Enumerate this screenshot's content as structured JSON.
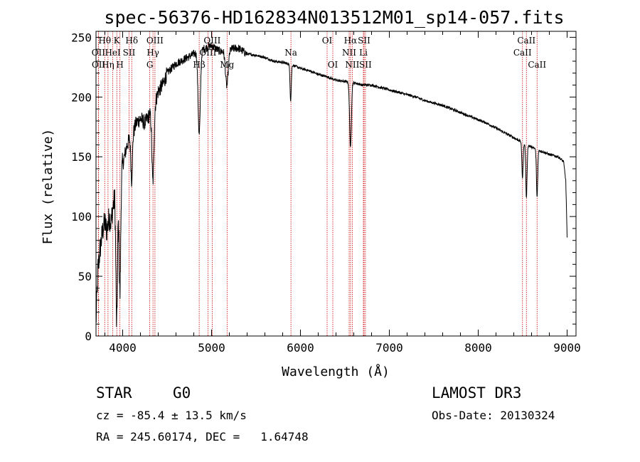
{
  "chart_data": {
    "type": "line",
    "title": "spec-56376-HD162834N013512M01_sp14-057.fits",
    "xlabel": "Wavelength (Å)",
    "ylabel": "Flux (relative)",
    "xlim": [
      3700,
      9100
    ],
    "ylim": [
      0,
      255
    ],
    "xticks": [
      4000,
      5000,
      6000,
      7000,
      8000,
      9000
    ],
    "yticks": [
      0,
      50,
      100,
      150,
      200,
      250
    ],
    "line_color": "#000000",
    "marker_color": "#cc0000",
    "continuum": [
      [
        3700,
        10
      ],
      [
        3720,
        55
      ],
      [
        3750,
        75
      ],
      [
        3780,
        90
      ],
      [
        3800,
        95
      ],
      [
        3820,
        88
      ],
      [
        3850,
        100
      ],
      [
        3870,
        95
      ],
      [
        3890,
        108
      ],
      [
        3910,
        115
      ],
      [
        3930,
        75
      ],
      [
        3950,
        110
      ],
      [
        3970,
        95
      ],
      [
        3990,
        140
      ],
      [
        4020,
        150
      ],
      [
        4050,
        160
      ],
      [
        4080,
        165
      ],
      [
        4100,
        160
      ],
      [
        4120,
        170
      ],
      [
        4150,
        178
      ],
      [
        4200,
        182
      ],
      [
        4250,
        178
      ],
      [
        4300,
        185
      ],
      [
        4350,
        190
      ],
      [
        4400,
        205
      ],
      [
        4450,
        210
      ],
      [
        4500,
        220
      ],
      [
        4600,
        228
      ],
      [
        4700,
        232
      ],
      [
        4800,
        236
      ],
      [
        4900,
        240
      ],
      [
        5000,
        243
      ],
      [
        5100,
        238
      ],
      [
        5200,
        240
      ],
      [
        5300,
        241
      ],
      [
        5400,
        236
      ],
      [
        5500,
        235
      ],
      [
        5600,
        233
      ],
      [
        5700,
        230
      ],
      [
        5800,
        229
      ],
      [
        5900,
        227
      ],
      [
        6000,
        224
      ],
      [
        6100,
        222
      ],
      [
        6200,
        219
      ],
      [
        6300,
        217
      ],
      [
        6400,
        214
      ],
      [
        6500,
        213
      ],
      [
        6600,
        212
      ],
      [
        6700,
        210
      ],
      [
        6800,
        210
      ],
      [
        6900,
        208
      ],
      [
        7000,
        206
      ],
      [
        7100,
        204
      ],
      [
        7200,
        202
      ],
      [
        7300,
        200
      ],
      [
        7400,
        197
      ],
      [
        7500,
        195
      ],
      [
        7600,
        193
      ],
      [
        7700,
        190
      ],
      [
        7800,
        187
      ],
      [
        7900,
        184
      ],
      [
        8000,
        181
      ],
      [
        8100,
        178
      ],
      [
        8200,
        174
      ],
      [
        8300,
        170
      ],
      [
        8400,
        166
      ],
      [
        8500,
        162
      ],
      [
        8600,
        158
      ],
      [
        8700,
        155
      ],
      [
        8800,
        152
      ],
      [
        8900,
        150
      ],
      [
        8960,
        146
      ],
      [
        8985,
        130
      ],
      [
        9000,
        82
      ]
    ],
    "absorption_lines": [
      [
        3934,
        70,
        12
      ],
      [
        3969,
        60,
        12
      ],
      [
        4101,
        30,
        12
      ],
      [
        4340,
        60,
        16
      ],
      [
        4861,
        70,
        18
      ],
      [
        5172,
        30,
        22
      ],
      [
        5890,
        30,
        10
      ],
      [
        6563,
        55,
        14
      ],
      [
        8498,
        30,
        10
      ],
      [
        8542,
        45,
        10
      ],
      [
        8662,
        40,
        10
      ]
    ],
    "spectral_lines": [
      {
        "label": "Hθ",
        "wavelength": 3798,
        "row": 0
      },
      {
        "label": "OII",
        "wavelength": 3727,
        "row": 1
      },
      {
        "label": "OII",
        "wavelength": 3729,
        "row": 2
      },
      {
        "label": "K",
        "wavelength": 3934,
        "row": 0
      },
      {
        "label": "HeI",
        "wavelength": 3889,
        "row": 1
      },
      {
        "label": "Hη",
        "wavelength": 3835,
        "row": 2
      },
      {
        "label": "Hδ",
        "wavelength": 4102,
        "row": 0
      },
      {
        "label": "SII",
        "wavelength": 4072,
        "row": 1
      },
      {
        "label": "H",
        "wavelength": 3969,
        "row": 2
      },
      {
        "label": "OIII",
        "wavelength": 4363,
        "row": 0
      },
      {
        "label": "Hγ",
        "wavelength": 4341,
        "row": 1
      },
      {
        "label": "G",
        "wavelength": 4305,
        "row": 2
      },
      {
        "label": "OIII",
        "wavelength": 5007,
        "row": 0
      },
      {
        "label": "OIII",
        "wavelength": 4959,
        "row": 1
      },
      {
        "label": "Hβ",
        "wavelength": 4861,
        "row": 2
      },
      {
        "label": "Mg",
        "wavelength": 5175,
        "row": 2
      },
      {
        "label": "Na",
        "wavelength": 5893,
        "row": 1
      },
      {
        "label": "OI",
        "wavelength": 6300,
        "row": 0
      },
      {
        "label": "OI",
        "wavelength": 6364,
        "row": 2
      },
      {
        "label": "Hα",
        "wavelength": 6563,
        "row": 0
      },
      {
        "label": "NII",
        "wavelength": 6548,
        "row": 1
      },
      {
        "label": "NII",
        "wavelength": 6583,
        "row": 2
      },
      {
        "label": "SII",
        "wavelength": 6716,
        "row": 0
      },
      {
        "label": "Li",
        "wavelength": 6708,
        "row": 1
      },
      {
        "label": "SII",
        "wavelength": 6731,
        "row": 2
      },
      {
        "label": "CaII",
        "wavelength": 8542,
        "row": 0
      },
      {
        "label": "CaII",
        "wavelength": 8498,
        "row": 1
      },
      {
        "label": "CaII",
        "wavelength": 8662,
        "row": 2
      }
    ]
  },
  "info": {
    "object_class": "STAR",
    "subclass": "G0",
    "survey": "LAMOST DR3",
    "redshift": "cz = -85.4 ± 13.5 km/s",
    "obs_date": "Obs-Date: 20130324",
    "coords": "RA = 245.60174, DEC =   1.64748"
  }
}
